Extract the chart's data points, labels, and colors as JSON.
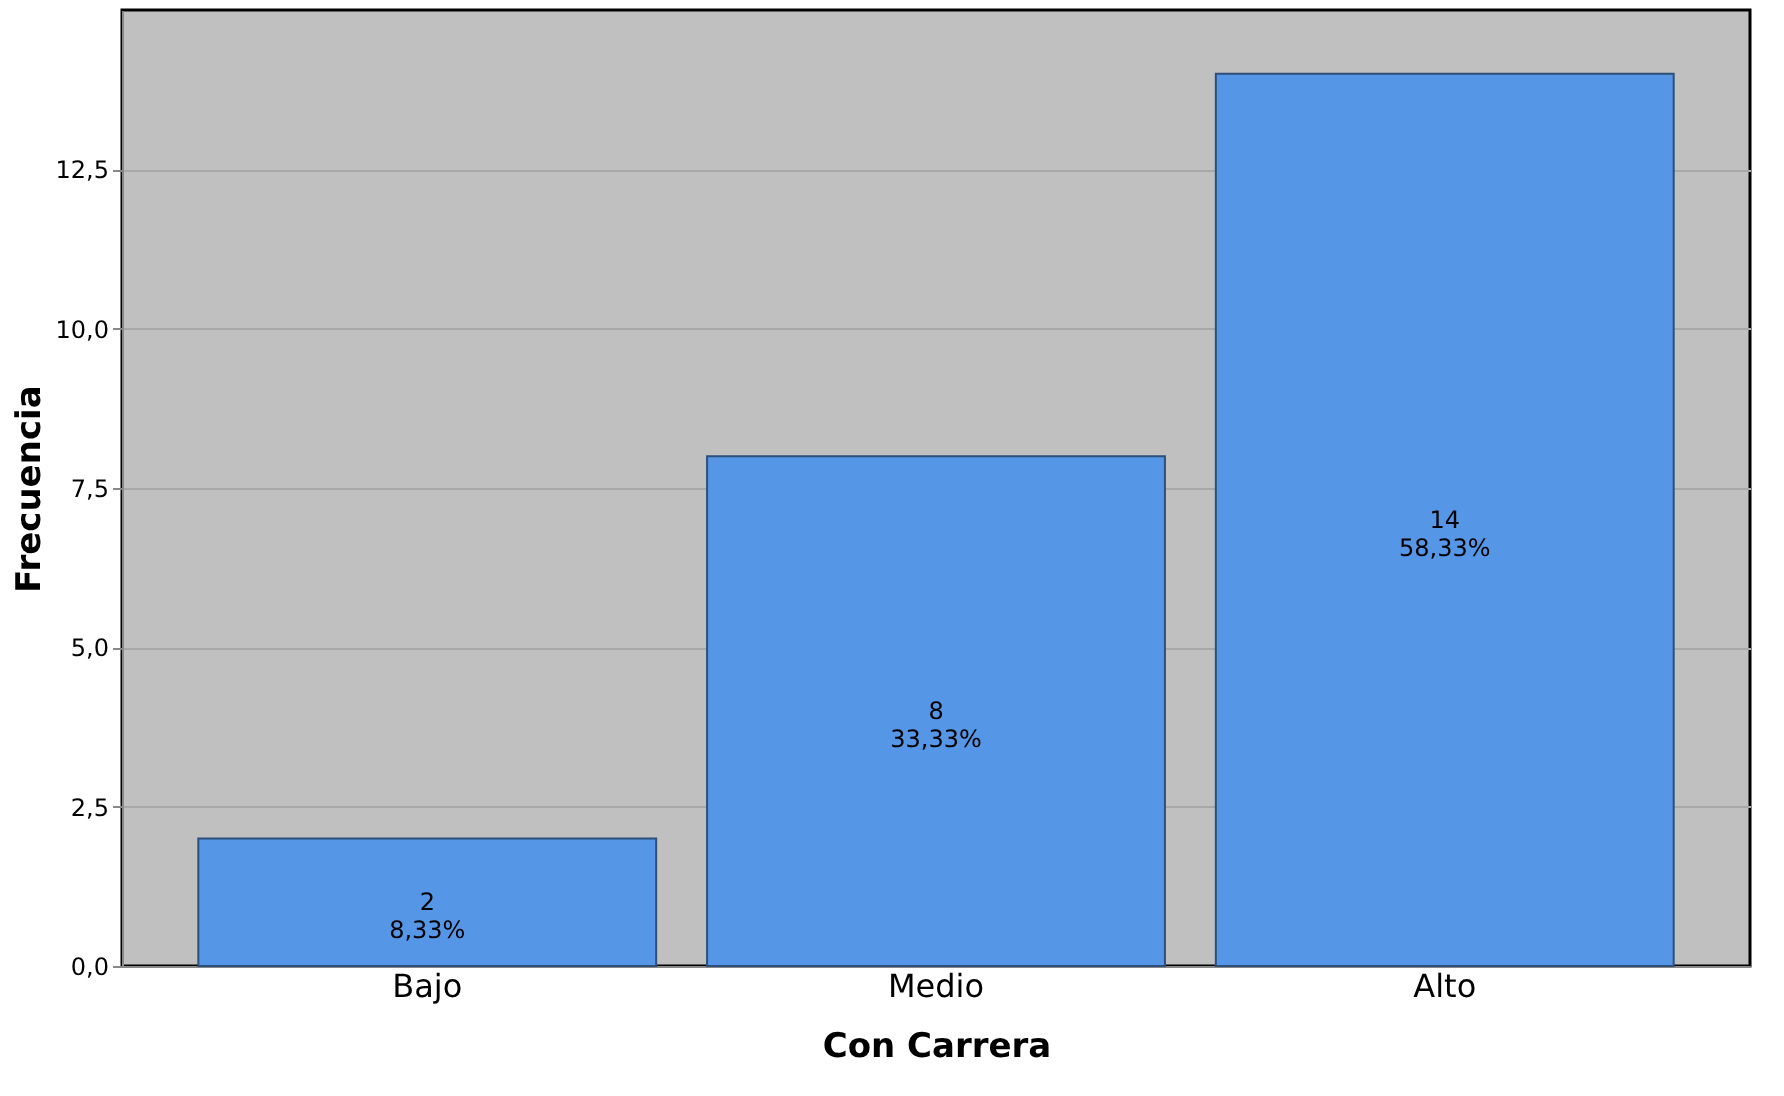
{
  "chart_data": {
    "type": "bar",
    "xlabel": "Con Carrera",
    "ylabel": "Frecuencia",
    "categories": [
      "Bajo",
      "Medio",
      "Alto"
    ],
    "values": [
      2,
      8,
      14
    ],
    "color": "#5596e6",
    "value_labels": [
      "2\n8,33%",
      "8\n33,33%",
      "14\n58,33%"
    ],
    "ylim": [
      0,
      15
    ],
    "yticks": [
      {
        "value": 0,
        "label": "0,0"
      },
      {
        "value": 2.5,
        "label": "2,5"
      },
      {
        "value": 5,
        "label": "5,0"
      },
      {
        "value": 7.5,
        "label": "7,5"
      },
      {
        "value": 10,
        "label": "10,0"
      },
      {
        "value": 12.5,
        "label": "12,5"
      }
    ],
    "grid": "y"
  }
}
